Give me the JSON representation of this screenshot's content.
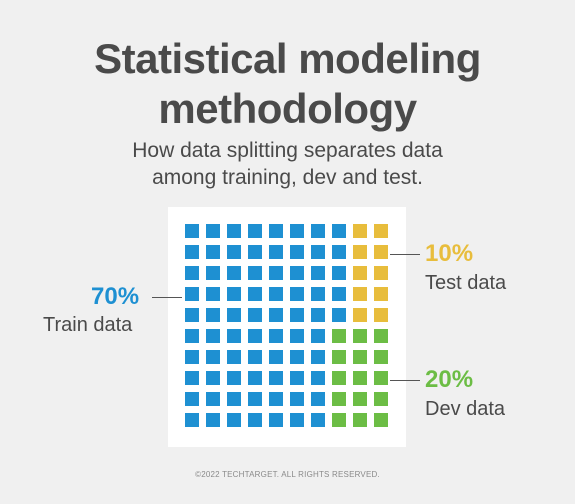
{
  "title_line1": "Statistical modeling",
  "title_line2": "methodology",
  "subtitle_line1": "How data splitting separates data",
  "subtitle_line2": "among training, dev and test.",
  "segments": {
    "train": {
      "percent": "70%",
      "label": "Train data",
      "color": "#1e90d2",
      "cells": 70
    },
    "test": {
      "percent": "10%",
      "label": "Test data",
      "color": "#e8bd3c",
      "cells": 10
    },
    "dev": {
      "percent": "20%",
      "label": "Dev data",
      "color": "#6cbd45",
      "cells": 20
    }
  },
  "copyright": "©2022 TECHTARGET. ALL RIGHTS RESERVED."
}
